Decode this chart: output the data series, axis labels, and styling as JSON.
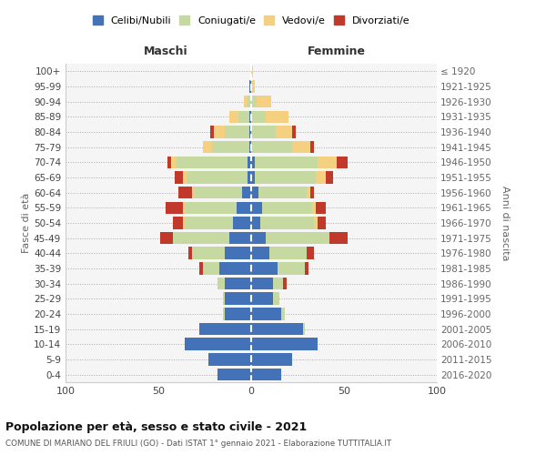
{
  "age_groups": [
    "100+",
    "95-99",
    "90-94",
    "85-89",
    "80-84",
    "75-79",
    "70-74",
    "65-69",
    "60-64",
    "55-59",
    "50-54",
    "45-49",
    "40-44",
    "35-39",
    "30-34",
    "25-29",
    "20-24",
    "15-19",
    "10-14",
    "5-9",
    "0-4"
  ],
  "birth_years": [
    "≤ 1920",
    "1921-1925",
    "1926-1930",
    "1931-1935",
    "1936-1940",
    "1941-1945",
    "1946-1950",
    "1951-1955",
    "1956-1960",
    "1961-1965",
    "1966-1970",
    "1971-1975",
    "1976-1980",
    "1981-1985",
    "1986-1990",
    "1991-1995",
    "1996-2000",
    "2001-2005",
    "2006-2010",
    "2011-2015",
    "2016-2020"
  ],
  "colors": {
    "celibi": "#4472b8",
    "coniugati": "#c5d9a0",
    "vedovi": "#f5d080",
    "divorziati": "#c0392b"
  },
  "males": {
    "celibi": [
      0,
      1,
      0,
      1,
      1,
      1,
      2,
      2,
      5,
      8,
      10,
      12,
      14,
      17,
      14,
      14,
      14,
      28,
      36,
      23,
      18
    ],
    "coniugati": [
      0,
      0,
      2,
      6,
      13,
      20,
      38,
      33,
      26,
      28,
      26,
      30,
      18,
      9,
      4,
      1,
      1,
      0,
      0,
      0,
      0
    ],
    "vedovi": [
      0,
      0,
      2,
      5,
      6,
      5,
      3,
      2,
      1,
      1,
      1,
      0,
      0,
      0,
      0,
      0,
      0,
      0,
      0,
      0,
      0
    ],
    "divorziati": [
      0,
      0,
      0,
      0,
      2,
      0,
      2,
      4,
      7,
      9,
      5,
      7,
      2,
      2,
      0,
      0,
      0,
      0,
      0,
      0,
      0
    ]
  },
  "females": {
    "celibi": [
      0,
      0,
      0,
      0,
      0,
      0,
      2,
      2,
      4,
      6,
      5,
      8,
      10,
      14,
      12,
      12,
      16,
      28,
      36,
      22,
      16
    ],
    "coniugati": [
      0,
      0,
      3,
      8,
      13,
      22,
      34,
      33,
      26,
      27,
      29,
      34,
      20,
      15,
      5,
      3,
      2,
      1,
      0,
      0,
      0
    ],
    "vedovi": [
      1,
      2,
      8,
      12,
      9,
      10,
      10,
      5,
      2,
      2,
      2,
      0,
      0,
      0,
      0,
      0,
      0,
      0,
      0,
      0,
      0
    ],
    "divorziati": [
      0,
      0,
      0,
      0,
      2,
      2,
      6,
      4,
      2,
      5,
      4,
      10,
      4,
      2,
      2,
      0,
      0,
      0,
      0,
      0,
      0
    ]
  },
  "xlim": 100,
  "title": "Popolazione per età, sesso e stato civile - 2021",
  "subtitle": "COMUNE DI MARIANO DEL FRIULI (GO) - Dati ISTAT 1° gennaio 2021 - Elaborazione TUTTITALIA.IT",
  "xlabel_left": "Maschi",
  "xlabel_right": "Femmine",
  "ylabel_left": "Fasce di età",
  "ylabel_right": "Anni di nascita"
}
